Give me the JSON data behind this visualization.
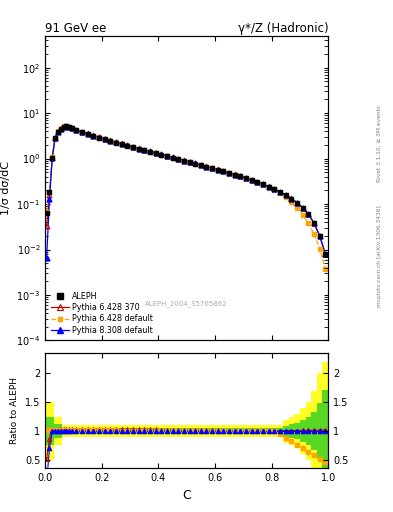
{
  "title_left": "91 GeV ee",
  "title_right": "γ*/Z (Hadronic)",
  "ylabel_main": "1/σ dσ/dC",
  "ylabel_ratio": "Ratio to ALEPH",
  "xlabel": "C",
  "right_label": "Rivet 3.1.10, ≥ 3M events",
  "right_label2": "mcplots.cern.ch [arXiv:1306.3436]",
  "watermark": "ALEPH_2004_S5765862",
  "ylim_main": [
    0.0001,
    500
  ],
  "ylim_ratio": [
    0.35,
    2.35
  ],
  "aleph_x": [
    0.005,
    0.015,
    0.025,
    0.035,
    0.045,
    0.055,
    0.065,
    0.075,
    0.085,
    0.095,
    0.11,
    0.13,
    0.15,
    0.17,
    0.19,
    0.21,
    0.23,
    0.25,
    0.27,
    0.29,
    0.31,
    0.33,
    0.35,
    0.37,
    0.39,
    0.41,
    0.43,
    0.45,
    0.47,
    0.49,
    0.51,
    0.53,
    0.55,
    0.57,
    0.59,
    0.61,
    0.63,
    0.65,
    0.67,
    0.69,
    0.71,
    0.73,
    0.75,
    0.77,
    0.79,
    0.81,
    0.83,
    0.85,
    0.87,
    0.89,
    0.91,
    0.93,
    0.95,
    0.97,
    0.99
  ],
  "aleph_y": [
    0.065,
    0.18,
    1.05,
    2.8,
    3.9,
    4.5,
    5.0,
    5.1,
    4.9,
    4.6,
    4.2,
    3.8,
    3.45,
    3.15,
    2.9,
    2.65,
    2.45,
    2.25,
    2.08,
    1.93,
    1.78,
    1.65,
    1.53,
    1.42,
    1.32,
    1.22,
    1.13,
    1.05,
    0.97,
    0.9,
    0.835,
    0.775,
    0.72,
    0.665,
    0.615,
    0.57,
    0.525,
    0.485,
    0.445,
    0.408,
    0.372,
    0.338,
    0.305,
    0.273,
    0.242,
    0.213,
    0.185,
    0.158,
    0.132,
    0.107,
    0.083,
    0.06,
    0.038,
    0.02,
    0.008
  ],
  "aleph_yerr_rel": 0.04,
  "legend": [
    {
      "label": "ALEPH",
      "color": "black",
      "marker": "s",
      "ls": "none"
    },
    {
      "label": "Pythia 6.428 370",
      "color": "#cc0000",
      "marker": "^",
      "ls": "-"
    },
    {
      "label": "Pythia 6.428 default",
      "color": "orange",
      "marker": "s",
      "ls": "--"
    },
    {
      "label": "Pythia 8.308 default",
      "color": "blue",
      "marker": "^",
      "ls": "-"
    }
  ]
}
